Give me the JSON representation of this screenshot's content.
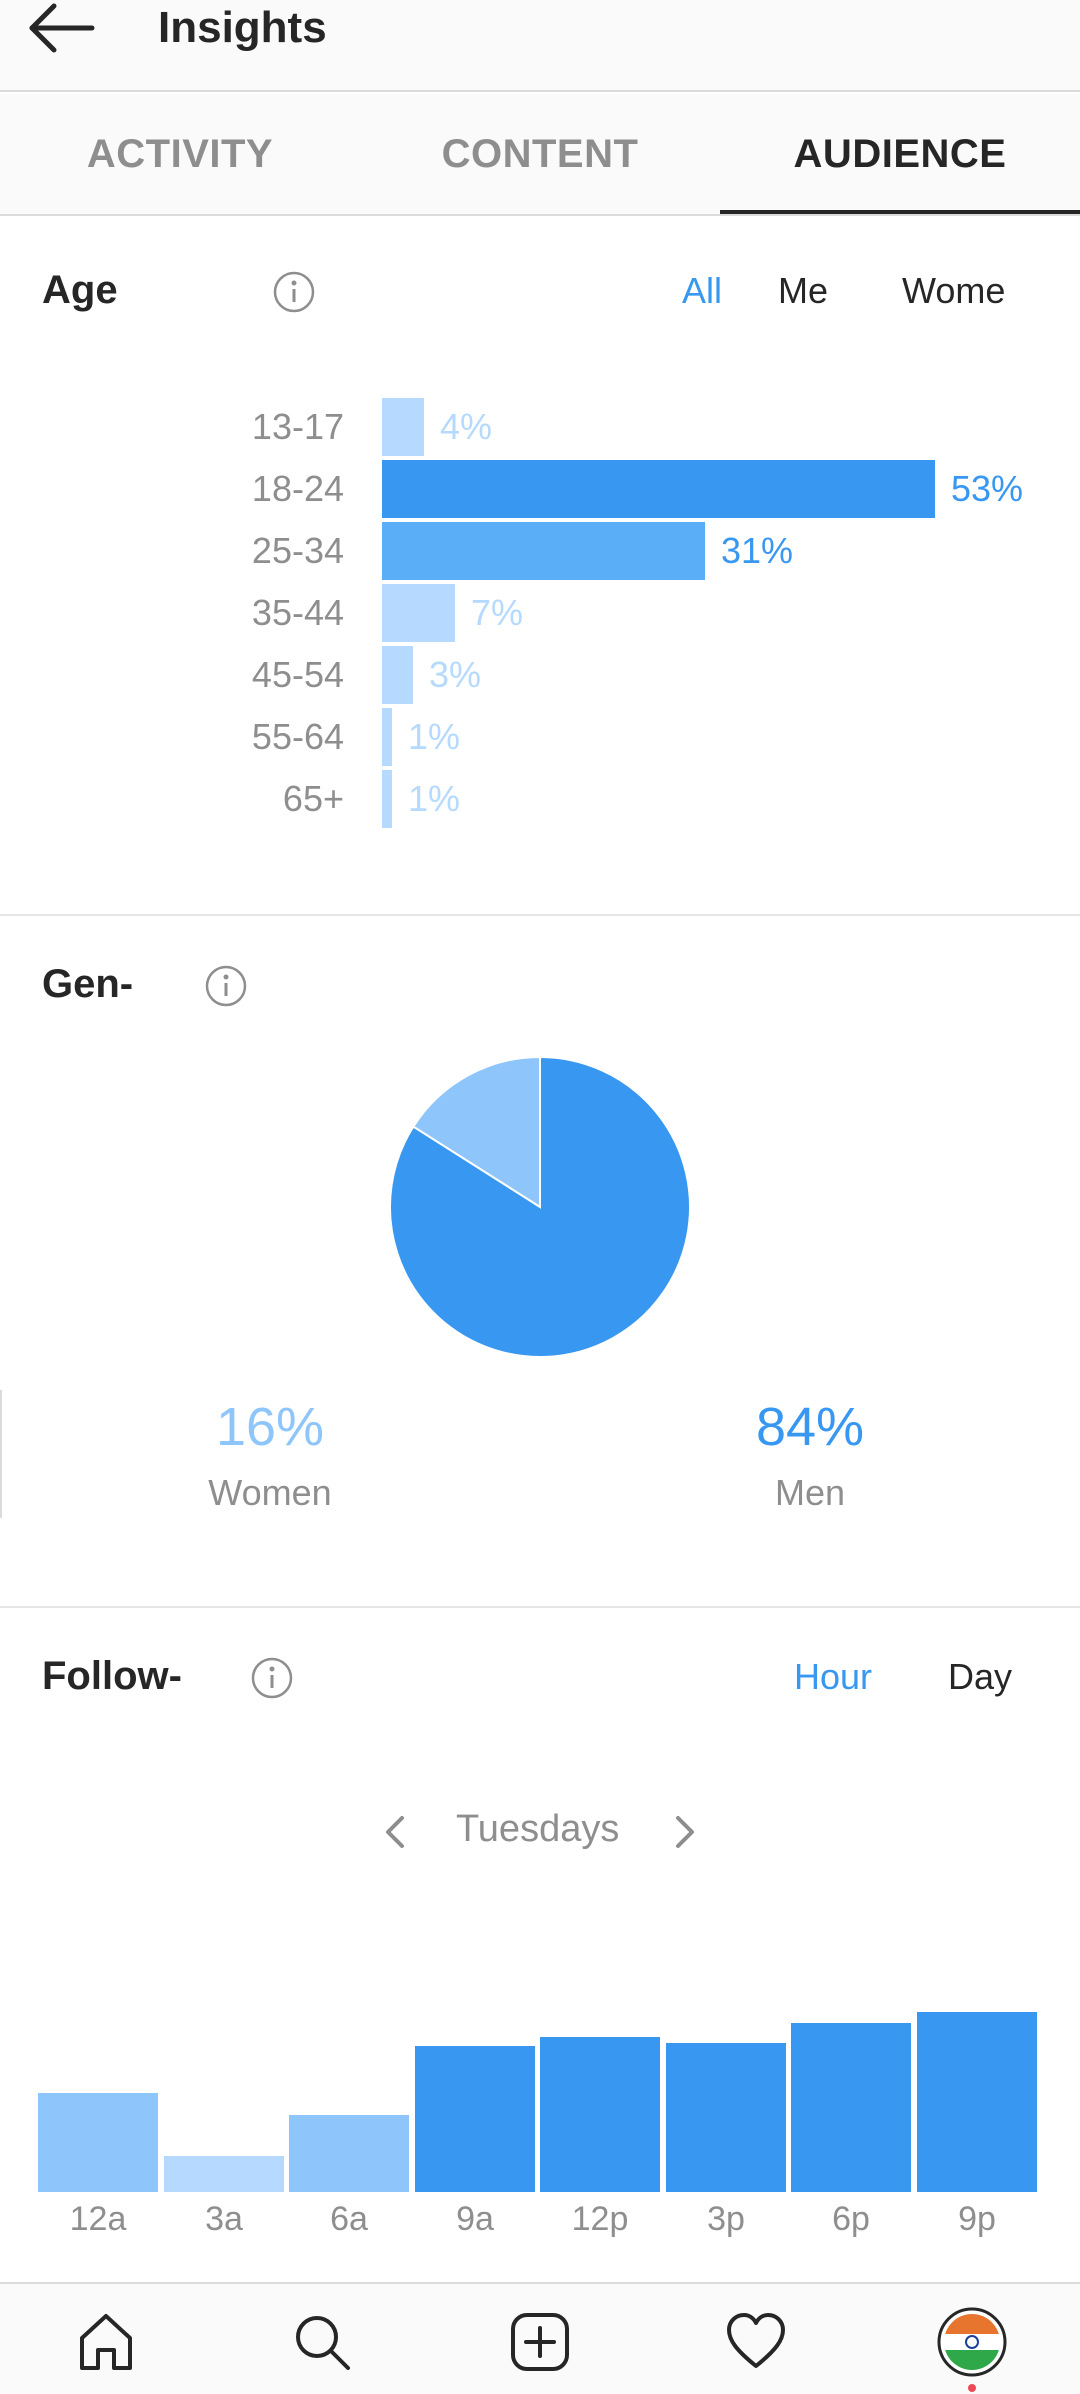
{
  "header": {
    "title": "Insights",
    "back_icon": "arrow-left-icon"
  },
  "tabs": [
    {
      "label": "ACTIVITY",
      "active": false
    },
    {
      "label": "CONTENT",
      "active": false
    },
    {
      "label": "AUDIENCE",
      "active": true
    }
  ],
  "age": {
    "title": "Age",
    "filters": [
      "All",
      "Me",
      "Wome"
    ],
    "active_filter": "All",
    "rows": [
      {
        "label": "13-17",
        "pct_label": "4%"
      },
      {
        "label": "18-24",
        "pct_label": "53%"
      },
      {
        "label": "25-34",
        "pct_label": "31%"
      },
      {
        "label": "35-44",
        "pct_label": "7%"
      },
      {
        "label": "45-54",
        "pct_label": "3%"
      },
      {
        "label": "55-64",
        "pct_label": "1%"
      },
      {
        "label": "65+",
        "pct_label": "1%"
      }
    ]
  },
  "gender": {
    "title": "Gen-",
    "women_pct": "16%",
    "women_label": "Women",
    "men_pct": "84%",
    "men_label": "Men"
  },
  "followers": {
    "title": "Follow-",
    "filters": [
      "Hour",
      "Day"
    ],
    "active_filter": "Hour",
    "day_label": "Tuesdays"
  },
  "colors": {
    "accent": "#3897f0",
    "bar_dark": "#3897f0",
    "bar_mid": "#5aadf7",
    "bar_light": "#8ec5fb",
    "bar_faint": "#b6daff"
  },
  "chart_data": [
    {
      "type": "bar",
      "orientation": "horizontal",
      "title": "Age",
      "categories": [
        "13-17",
        "18-24",
        "25-34",
        "35-44",
        "45-54",
        "55-64",
        "65+"
      ],
      "values": [
        4,
        53,
        31,
        7,
        3,
        1,
        1
      ],
      "unit": "%"
    },
    {
      "type": "pie",
      "title": "Gen-",
      "categories": [
        "Women",
        "Men"
      ],
      "values": [
        16,
        84
      ],
      "unit": "%"
    },
    {
      "type": "bar",
      "title": "Follow-",
      "categories": [
        "12a",
        "3a",
        "6a",
        "9a",
        "12p",
        "3p",
        "6p",
        "9p"
      ],
      "values": [
        55,
        20,
        43,
        81,
        86,
        83,
        94,
        100
      ],
      "ylim": [
        0,
        100
      ]
    }
  ],
  "bottom_nav": [
    {
      "icon": "home-icon"
    },
    {
      "icon": "search-icon"
    },
    {
      "icon": "add-post-icon"
    },
    {
      "icon": "heart-icon"
    },
    {
      "icon": "profile-avatar"
    }
  ]
}
